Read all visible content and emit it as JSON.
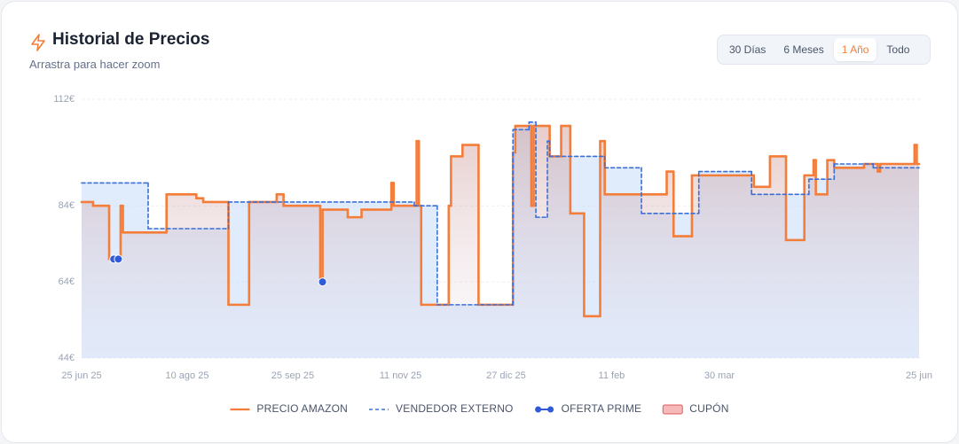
{
  "header": {
    "title": "Historial de Precios",
    "subtitle": "Arrastra para hacer zoom"
  },
  "range_buttons": {
    "options": [
      "30 Días",
      "6 Meses",
      "1 Año",
      "Todo"
    ],
    "active": 2
  },
  "chart_data": {
    "type": "line",
    "step": true,
    "grid": true,
    "xlim": [
      "2025-06-25",
      "2026-06-25"
    ],
    "xticks": [
      {
        "value": "2025-06-25",
        "label": "25 jun 25"
      },
      {
        "value": "2025-08-10",
        "label": "10 ago 25"
      },
      {
        "value": "2025-09-25",
        "label": "25 sep 25"
      },
      {
        "value": "2025-11-11",
        "label": "11 nov 25"
      },
      {
        "value": "2025-12-27",
        "label": "27 dic 25"
      },
      {
        "value": "2026-02-11",
        "label": "11 feb"
      },
      {
        "value": "2026-03-30",
        "label": "30 mar"
      },
      {
        "value": "2026-06-25",
        "label": "25 jun"
      }
    ],
    "ylim": [
      44,
      112
    ],
    "yticks": [
      {
        "value": 44,
        "label": "44€"
      },
      {
        "value": 64,
        "label": "64€"
      },
      {
        "value": 84,
        "label": "84€"
      },
      {
        "value": 112,
        "label": "112€"
      }
    ],
    "series": [
      {
        "name": "PRECIO AMAZON",
        "color": "#f47d3a",
        "line_style": "solid",
        "x": [
          "2025-06-25",
          "2025-06-30",
          "2025-07-07",
          "2025-07-12",
          "2025-07-13",
          "2025-08-01",
          "2025-08-14",
          "2025-08-17",
          "2025-08-28",
          "2025-09-06",
          "2025-09-18",
          "2025-09-21",
          "2025-10-07",
          "2025-10-08",
          "2025-10-19",
          "2025-10-25",
          "2025-11-07",
          "2025-11-08",
          "2025-11-18",
          "2025-11-19",
          "2025-11-20",
          "2025-12-02",
          "2025-12-03",
          "2025-12-08",
          "2025-12-15",
          "2025-12-30",
          "2025-12-31",
          "2026-01-07",
          "2026-01-08",
          "2026-01-15",
          "2026-01-20",
          "2026-01-24",
          "2026-01-30",
          "2026-02-06",
          "2026-02-08",
          "2026-02-24",
          "2026-03-07",
          "2026-03-10",
          "2026-03-18",
          "2026-04-14",
          "2026-04-21",
          "2026-04-28",
          "2026-05-06",
          "2026-05-10",
          "2026-05-11",
          "2026-05-16",
          "2026-05-19",
          "2026-06-01",
          "2026-06-07",
          "2026-06-08",
          "2026-06-23",
          "2026-06-24"
        ],
        "values": [
          85,
          84,
          70,
          84,
          77,
          87,
          86,
          85,
          58,
          85,
          87,
          84,
          64,
          83,
          81,
          83,
          90,
          84,
          101,
          84,
          58,
          84,
          97,
          100,
          58,
          98,
          105,
          84,
          105,
          97,
          105,
          82,
          55,
          101,
          87,
          87,
          93,
          76,
          92,
          89,
          97,
          75,
          92,
          96,
          87,
          96,
          94,
          95,
          93,
          95,
          100,
          95
        ]
      },
      {
        "name": "VENDEDOR EXTERNO",
        "color": "#3b6fd8",
        "line_style": "dashed",
        "x": [
          "2025-06-25",
          "2025-07-24",
          "2025-08-28",
          "2025-11-17",
          "2025-11-27",
          "2025-12-30",
          "2026-01-06",
          "2026-01-09",
          "2026-01-14",
          "2026-01-15",
          "2026-02-08",
          "2026-02-24",
          "2026-03-21",
          "2026-04-13",
          "2026-05-08",
          "2026-05-19",
          "2026-06-05"
        ],
        "values": [
          90,
          78,
          85,
          84,
          58,
          104,
          106,
          81,
          101,
          97,
          94,
          82,
          93,
          87,
          91,
          95,
          94
        ]
      },
      {
        "name": "OFERTA PRIME",
        "color": "#2f5bd6",
        "marker": "dot",
        "x": [
          "2025-07-09",
          "2025-07-11",
          "2025-10-08"
        ],
        "values": [
          70,
          70,
          64
        ]
      },
      {
        "name": "CUPÓN",
        "color": "#f08a8a",
        "marker": "coupon",
        "x": [],
        "values": []
      }
    ]
  }
}
